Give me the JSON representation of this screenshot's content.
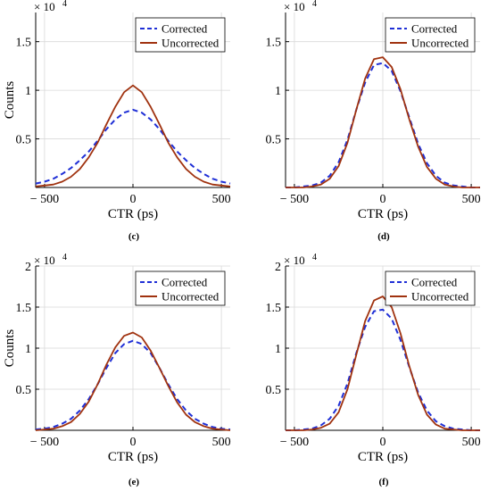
{
  "colors": {
    "corrected": "#1f2fd6",
    "uncorrected": "#a0320f",
    "grid": "#d9d9d9",
    "axis": "#000000"
  },
  "chart_data": [
    {
      "panel_label": "(c)",
      "type": "line",
      "xlabel": "CTR (ps)",
      "ylabel": "Counts",
      "exponent_label": "× 10",
      "exponent_power": "4",
      "xlim": [
        -550,
        550
      ],
      "ylim": [
        0,
        1.8
      ],
      "xticks": [
        -500,
        0,
        500
      ],
      "xtick_labels": [
        "− 500",
        "0",
        "500"
      ],
      "yticks": [
        0.5,
        1,
        1.5
      ],
      "ytick_labels": [
        "0.5",
        "1",
        "1.5"
      ],
      "grid": true,
      "legend": "top-right",
      "series": [
        {
          "name": "Corrected",
          "style": "dashed",
          "x": [
            -550,
            -500,
            -450,
            -400,
            -350,
            -300,
            -250,
            -200,
            -150,
            -100,
            -50,
            0,
            50,
            100,
            150,
            200,
            250,
            300,
            350,
            400,
            450,
            500,
            550
          ],
          "y": [
            0.04,
            0.06,
            0.09,
            0.14,
            0.2,
            0.28,
            0.37,
            0.48,
            0.6,
            0.7,
            0.77,
            0.8,
            0.77,
            0.7,
            0.6,
            0.48,
            0.37,
            0.28,
            0.2,
            0.14,
            0.09,
            0.06,
            0.04
          ]
        },
        {
          "name": "Uncorrected",
          "style": "solid",
          "x": [
            -550,
            -500,
            -450,
            -400,
            -350,
            -300,
            -250,
            -200,
            -150,
            -100,
            -50,
            0,
            50,
            100,
            150,
            200,
            250,
            300,
            350,
            400,
            450,
            500,
            550
          ],
          "y": [
            0.01,
            0.02,
            0.03,
            0.06,
            0.11,
            0.19,
            0.31,
            0.46,
            0.65,
            0.83,
            0.98,
            1.05,
            0.98,
            0.83,
            0.65,
            0.46,
            0.31,
            0.19,
            0.11,
            0.06,
            0.03,
            0.02,
            0.01
          ]
        }
      ]
    },
    {
      "panel_label": "(d)",
      "type": "line",
      "xlabel": "CTR (ps)",
      "ylabel": "",
      "exponent_label": "× 10",
      "exponent_power": "4",
      "xlim": [
        -550,
        550
      ],
      "ylim": [
        0,
        1.8
      ],
      "xticks": [
        -500,
        0,
        500
      ],
      "xtick_labels": [
        "− 500",
        "0",
        "500"
      ],
      "yticks": [
        0.5,
        1,
        1.5
      ],
      "ytick_labels": [
        "0.5",
        "1",
        "1.5"
      ],
      "grid": true,
      "legend": "top-right",
      "series": [
        {
          "name": "Corrected",
          "style": "dashed",
          "x": [
            -550,
            -500,
            -450,
            -400,
            -350,
            -300,
            -250,
            -200,
            -150,
            -100,
            -50,
            0,
            50,
            100,
            150,
            200,
            250,
            300,
            350,
            400,
            450,
            500,
            550
          ],
          "y": [
            0,
            0,
            0.01,
            0.02,
            0.05,
            0.12,
            0.26,
            0.49,
            0.8,
            1.08,
            1.26,
            1.28,
            1.2,
            0.99,
            0.72,
            0.45,
            0.25,
            0.12,
            0.05,
            0.02,
            0.01,
            0,
            0
          ]
        },
        {
          "name": "Uncorrected",
          "style": "solid",
          "x": [
            -550,
            -500,
            -450,
            -400,
            -350,
            -300,
            -250,
            -200,
            -150,
            -100,
            -50,
            0,
            50,
            100,
            150,
            200,
            250,
            300,
            350,
            400,
            450,
            500,
            550
          ],
          "y": [
            0,
            0,
            0,
            0.01,
            0.03,
            0.09,
            0.22,
            0.46,
            0.8,
            1.12,
            1.32,
            1.34,
            1.24,
            1.01,
            0.7,
            0.42,
            0.21,
            0.09,
            0.03,
            0.01,
            0,
            0,
            0
          ]
        }
      ]
    },
    {
      "panel_label": "(e)",
      "type": "line",
      "xlabel": "CTR (ps)",
      "ylabel": "Counts",
      "exponent_label": "× 10",
      "exponent_power": "4",
      "xlim": [
        -550,
        550
      ],
      "ylim": [
        0,
        2
      ],
      "xticks": [
        -500,
        0,
        500
      ],
      "xtick_labels": [
        "− 500",
        "0",
        "500"
      ],
      "yticks": [
        0.5,
        1,
        1.5,
        2
      ],
      "ytick_labels": [
        "0.5",
        "1",
        "1.5",
        "2"
      ],
      "grid": true,
      "legend": "top-right",
      "series": [
        {
          "name": "Corrected",
          "style": "dashed",
          "x": [
            -550,
            -500,
            -450,
            -400,
            -350,
            -300,
            -250,
            -200,
            -150,
            -100,
            -50,
            0,
            50,
            100,
            150,
            200,
            250,
            300,
            350,
            400,
            450,
            500,
            550
          ],
          "y": [
            0.01,
            0.02,
            0.04,
            0.08,
            0.14,
            0.24,
            0.38,
            0.56,
            0.76,
            0.94,
            1.05,
            1.09,
            1.05,
            0.94,
            0.76,
            0.56,
            0.38,
            0.24,
            0.14,
            0.08,
            0.04,
            0.02,
            0.01
          ]
        },
        {
          "name": "Uncorrected",
          "style": "solid",
          "x": [
            -550,
            -500,
            -450,
            -400,
            -350,
            -300,
            -250,
            -200,
            -150,
            -100,
            -50,
            0,
            50,
            100,
            150,
            200,
            250,
            300,
            350,
            400,
            450,
            500,
            550
          ],
          "y": [
            0,
            0.01,
            0.02,
            0.05,
            0.1,
            0.2,
            0.35,
            0.56,
            0.8,
            1.01,
            1.15,
            1.19,
            1.13,
            0.97,
            0.76,
            0.54,
            0.34,
            0.19,
            0.1,
            0.05,
            0.02,
            0.01,
            0
          ]
        }
      ]
    },
    {
      "panel_label": "(f)",
      "type": "line",
      "xlabel": "CTR (ps)",
      "ylabel": "",
      "exponent_label": "× 10",
      "exponent_power": "4",
      "xlim": [
        -550,
        550
      ],
      "ylim": [
        0,
        2
      ],
      "xticks": [
        -500,
        0,
        500
      ],
      "xtick_labels": [
        "− 500",
        "0",
        "500"
      ],
      "yticks": [
        0.5,
        1,
        1.5,
        2
      ],
      "ytick_labels": [
        "0.5",
        "1",
        "1.5",
        "2"
      ],
      "grid": true,
      "legend": "top-right",
      "series": [
        {
          "name": "Corrected",
          "style": "dashed",
          "x": [
            -550,
            -500,
            -450,
            -400,
            -350,
            -300,
            -250,
            -200,
            -150,
            -100,
            -50,
            0,
            50,
            100,
            150,
            200,
            250,
            300,
            350,
            400,
            450,
            500,
            550
          ],
          "y": [
            0,
            0,
            0.01,
            0.02,
            0.06,
            0.14,
            0.3,
            0.57,
            0.94,
            1.26,
            1.45,
            1.47,
            1.36,
            1.1,
            0.77,
            0.46,
            0.24,
            0.11,
            0.05,
            0.02,
            0.01,
            0,
            0
          ]
        },
        {
          "name": "Uncorrected",
          "style": "solid",
          "x": [
            -550,
            -500,
            -450,
            -400,
            -350,
            -300,
            -250,
            -200,
            -150,
            -100,
            -50,
            0,
            50,
            100,
            150,
            200,
            250,
            300,
            350,
            400,
            450,
            500,
            550
          ],
          "y": [
            0,
            0,
            0,
            0.01,
            0.03,
            0.08,
            0.22,
            0.5,
            0.92,
            1.33,
            1.58,
            1.63,
            1.5,
            1.18,
            0.78,
            0.43,
            0.19,
            0.07,
            0.02,
            0.01,
            0,
            0,
            0
          ]
        }
      ]
    }
  ]
}
